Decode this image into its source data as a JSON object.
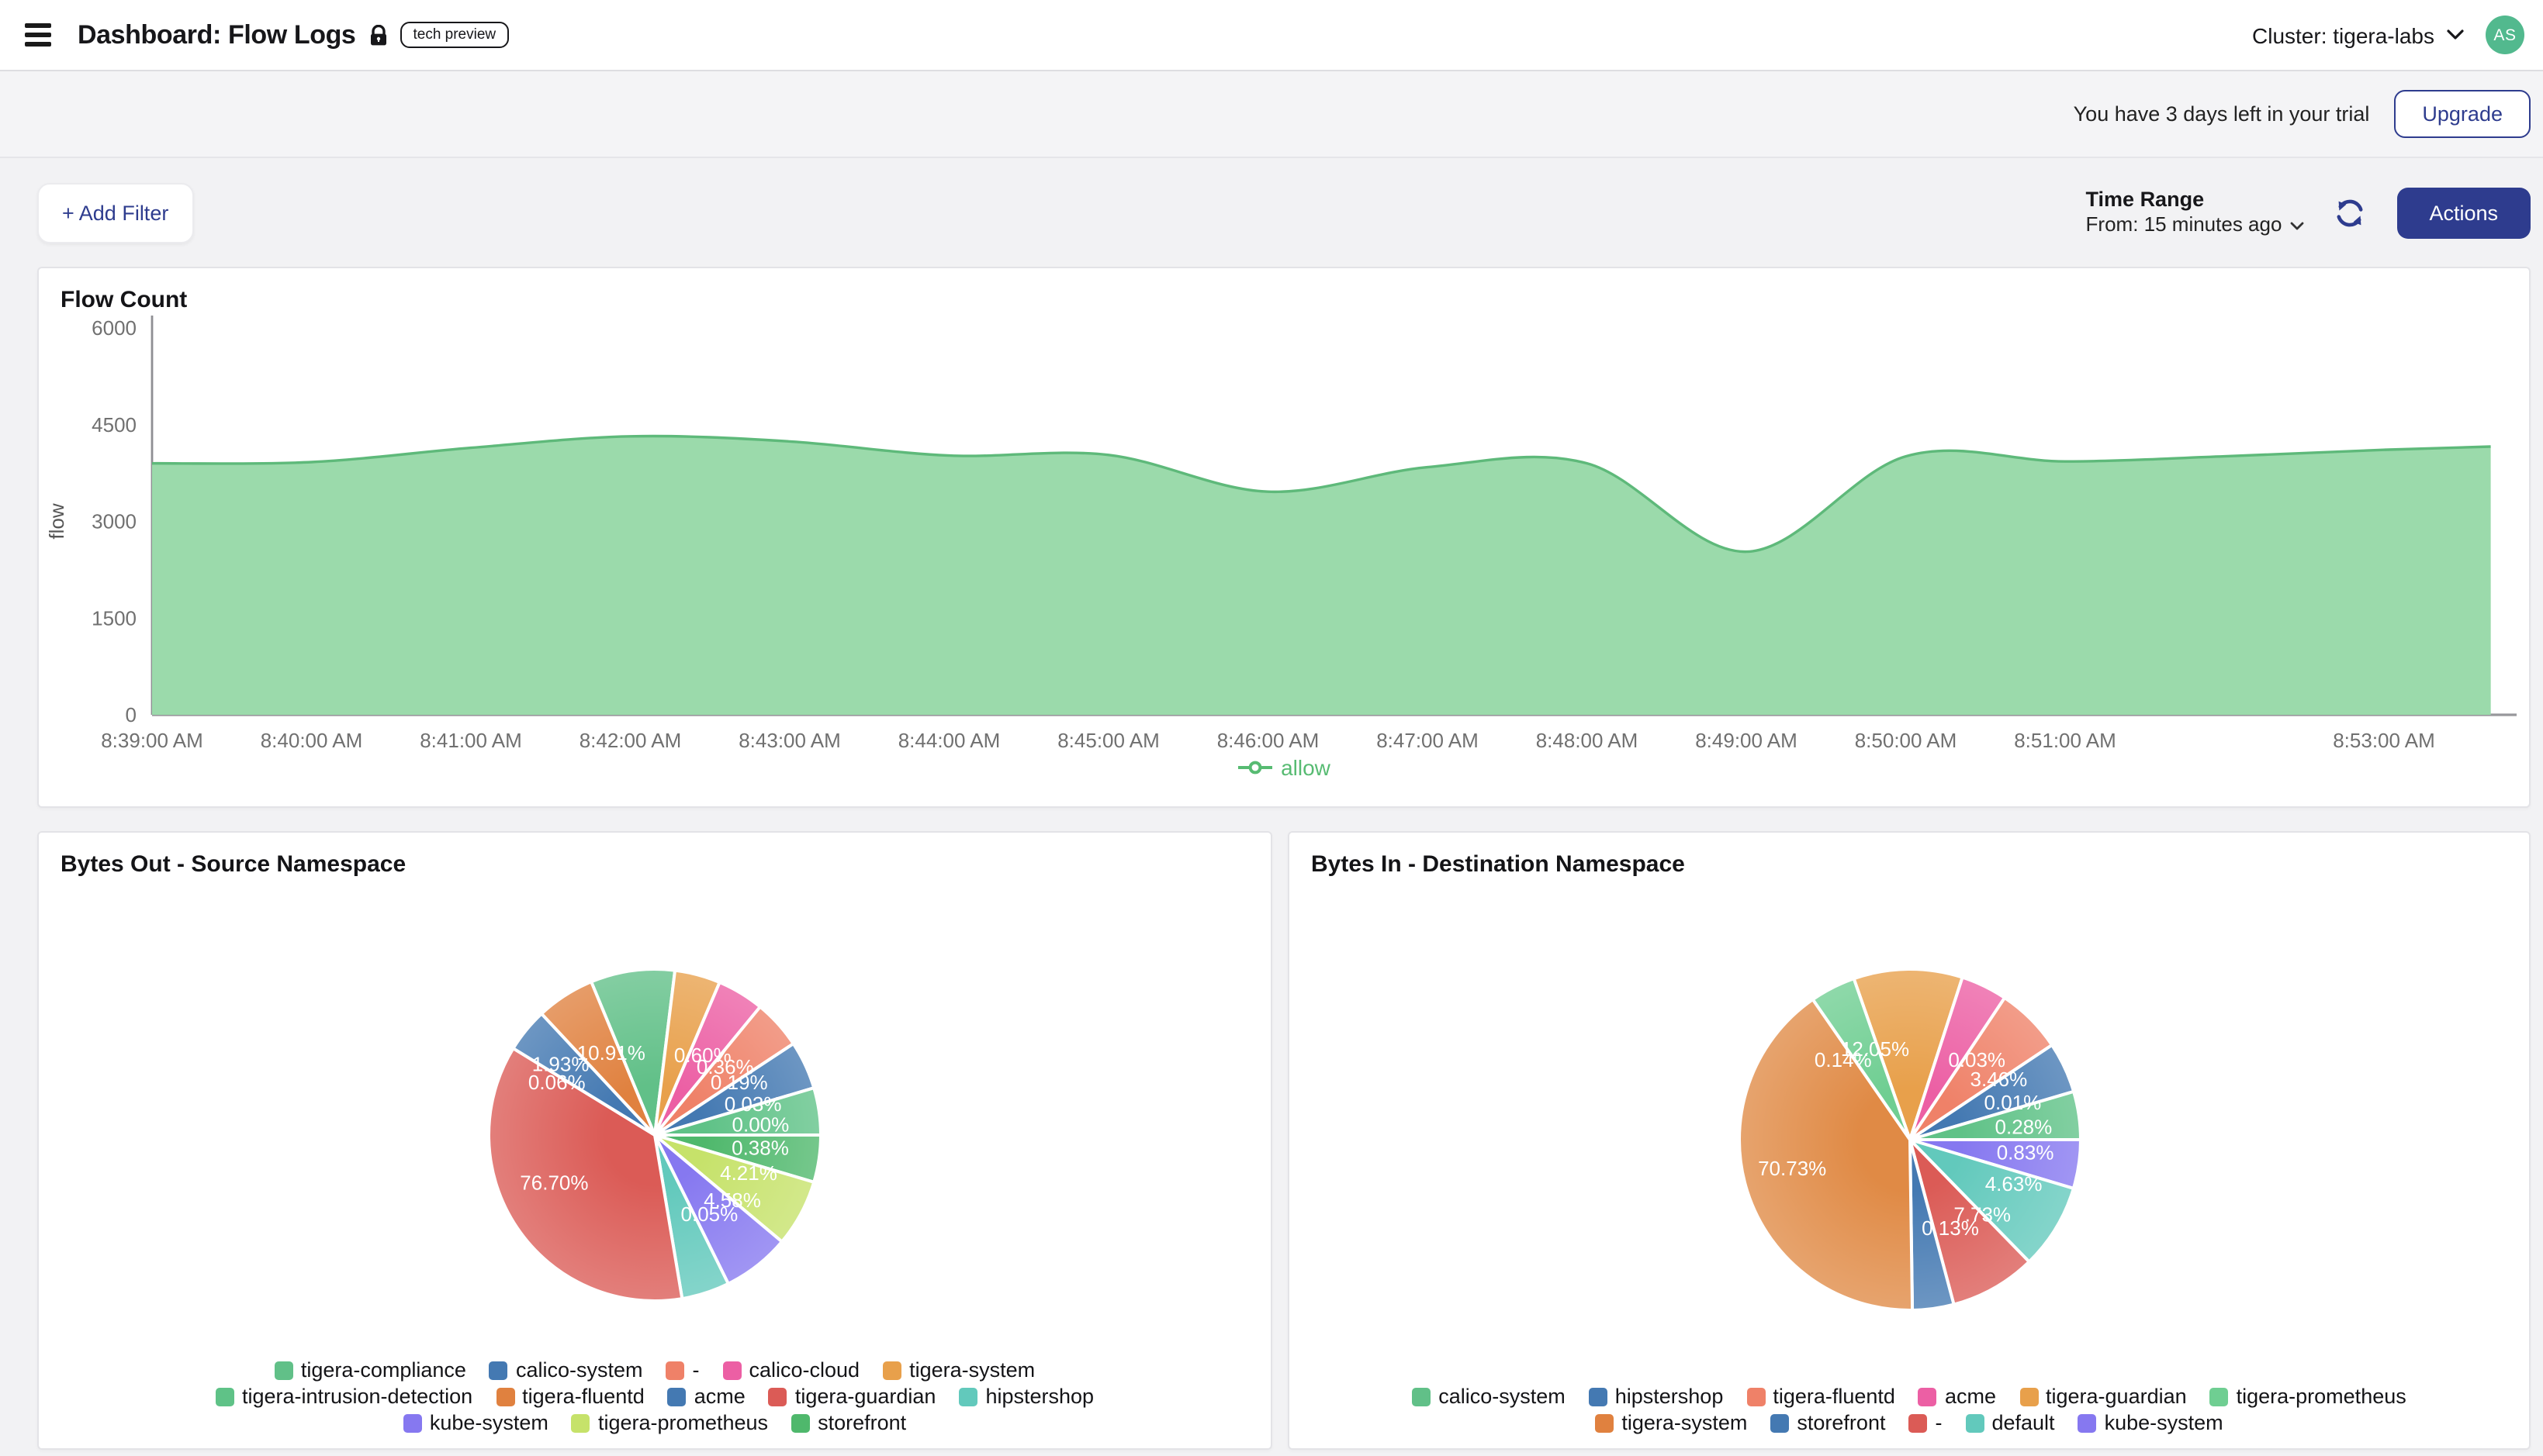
{
  "header": {
    "title": "Dashboard: Flow Logs",
    "badge": "tech preview",
    "cluster_label": "Cluster: tigera-labs",
    "avatar_initials": "AS"
  },
  "trial_banner": {
    "message": "You have 3 days left in your trial",
    "upgrade_label": "Upgrade"
  },
  "toolbar": {
    "add_filter_label": "+ Add Filter",
    "time_range_title": "Time Range",
    "time_range_value": "From: 15 minutes ago",
    "actions_label": "Actions"
  },
  "colors": {
    "accent_navy": "#2e3c8e",
    "area_fill": "#9bdaab",
    "area_stroke": "#5eb97a",
    "allow_green": "#57bb72",
    "avatar_green": "#52b98e",
    "axis_text": "#707070"
  },
  "chart_data": [
    {
      "type": "area",
      "title": "Flow Count",
      "xlabel": "",
      "ylabel": "flow",
      "ylim": [
        0,
        6000
      ],
      "yticks": [
        0,
        1500,
        3000,
        4500,
        6000
      ],
      "grid": false,
      "legend_position": "bottom",
      "xticks": [
        {
          "minute": 0,
          "label": "8:39:00 AM"
        },
        {
          "minute": 1,
          "label": "8:40:00 AM"
        },
        {
          "minute": 2,
          "label": "8:41:00 AM"
        },
        {
          "minute": 3,
          "label": "8:42:00 AM"
        },
        {
          "minute": 4,
          "label": "8:43:00 AM"
        },
        {
          "minute": 5,
          "label": "8:44:00 AM"
        },
        {
          "minute": 6,
          "label": "8:45:00 AM"
        },
        {
          "minute": 7,
          "label": "8:46:00 AM"
        },
        {
          "minute": 8,
          "label": "8:47:00 AM"
        },
        {
          "minute": 9,
          "label": "8:48:00 AM"
        },
        {
          "minute": 10,
          "label": "8:49:00 AM"
        },
        {
          "minute": 11,
          "label": "8:50:00 AM"
        },
        {
          "minute": 12,
          "label": "8:51:00 AM"
        },
        {
          "minute": 14,
          "label": "8:53:00 AM"
        }
      ],
      "series": [
        {
          "name": "allow",
          "x_minutes": [
            0,
            1,
            2,
            3,
            4,
            5,
            6,
            7,
            8,
            9,
            10,
            11,
            12,
            13,
            14,
            14.67
          ],
          "values": [
            3900,
            3920,
            4140,
            4320,
            4240,
            4020,
            4030,
            3460,
            3840,
            3900,
            2530,
            4010,
            3930,
            4010,
            4110,
            4160
          ],
          "fill": "#9bdaab",
          "stroke": "#5eb97a"
        }
      ]
    },
    {
      "type": "pie",
      "title": "Bytes Out - Source Namespace",
      "label_color": "#ffffff",
      "radius": 107,
      "slices": [
        {
          "name": "tigera-compliance",
          "value_pct": 10.91,
          "label": "10.91%",
          "color": "#61c088",
          "start_deg": 337.5,
          "end_deg": 367.0,
          "label_deg": 332.0,
          "label_r": 0.56
        },
        {
          "name": "tigera-system",
          "value_pct": 0.6,
          "label": "0.60%",
          "color": "#e8a04b",
          "start_deg": 7.0,
          "end_deg": 23.0,
          "label_deg": 31.0,
          "label_r": 0.56
        },
        {
          "name": "calico-cloud",
          "value_pct": 0.36,
          "label": "0.36%",
          "color": "#ec5fa4",
          "start_deg": 23.0,
          "end_deg": 39.4,
          "label_deg": 46.0,
          "label_r": 0.59
        },
        {
          "name": "-",
          "value_pct": 0.19,
          "label": "0.19%",
          "color": "#ef8168",
          "start_deg": 39.4,
          "end_deg": 56.6,
          "label_deg": 58.0,
          "label_r": 0.6
        },
        {
          "name": "calico-system",
          "value_pct": 0.03,
          "label": "0.03%",
          "color": "#4479b2",
          "start_deg": 56.6,
          "end_deg": 73.5,
          "label_deg": 72.5,
          "label_r": 0.62
        },
        {
          "name": "tigera-intrusion-detection",
          "value_pct": 0.0,
          "label": "0.00%",
          "color": "#5fc287",
          "start_deg": 73.5,
          "end_deg": 90.0,
          "label_deg": 84.4,
          "label_r": 0.64
        },
        {
          "name": "storefront",
          "value_pct": 0.38,
          "label": "0.38%",
          "color": "#4fb86c",
          "start_deg": 90.0,
          "end_deg": 106.5,
          "label_deg": 97.0,
          "label_r": 0.64
        },
        {
          "name": "tigera-prometheus",
          "value_pct": 4.21,
          "label": "4.21%",
          "color": "#c6e26a",
          "start_deg": 106.5,
          "end_deg": 130.0,
          "label_deg": 112.0,
          "label_r": 0.61
        },
        {
          "name": "kube-system",
          "value_pct": 4.58,
          "label": "4.58%",
          "color": "#8678f0",
          "start_deg": 130.0,
          "end_deg": 153.7,
          "label_deg": 130.0,
          "label_r": 0.61
        },
        {
          "name": "hipstershop",
          "value_pct": 0.05,
          "label": "0.05%",
          "color": "#62c9bc",
          "start_deg": 153.7,
          "end_deg": 170.5,
          "label_deg": 145.5,
          "label_r": 0.58
        },
        {
          "name": "tigera-guardian",
          "value_pct": 76.7,
          "label": "76.70%",
          "color": "#db5b56",
          "start_deg": 170.5,
          "end_deg": 301.5,
          "label_deg": 244.6,
          "label_r": 0.67
        },
        {
          "name": "acme",
          "value_pct": 0.06,
          "label": "0.06%",
          "color": "#4479b2",
          "start_deg": 301.5,
          "end_deg": 317.0,
          "label_deg": 298.4,
          "label_r": 0.67
        },
        {
          "name": "tigera-fluentd",
          "value_pct": 1.93,
          "label": "1.93%",
          "color": "#e0813f",
          "start_deg": 317.0,
          "end_deg": 337.5,
          "label_deg": 307.0,
          "label_r": 0.71
        }
      ],
      "legend_rows": [
        [
          {
            "name": "tigera-compliance",
            "color": "#61c088"
          },
          {
            "name": "calico-system",
            "color": "#4479b2"
          },
          {
            "name": "-",
            "color": "#ef8168"
          },
          {
            "name": "calico-cloud",
            "color": "#ec5fa4"
          },
          {
            "name": "tigera-system",
            "color": "#e8a04b"
          }
        ],
        [
          {
            "name": "tigera-intrusion-detection",
            "color": "#5fc287"
          },
          {
            "name": "tigera-fluentd",
            "color": "#e0813f"
          },
          {
            "name": "acme",
            "color": "#4479b2"
          },
          {
            "name": "tigera-guardian",
            "color": "#db5b56"
          },
          {
            "name": "hipstershop",
            "color": "#62c9bc"
          }
        ],
        [
          {
            "name": "kube-system",
            "color": "#8678f0"
          },
          {
            "name": "tigera-prometheus",
            "color": "#c6e26a"
          },
          {
            "name": "storefront",
            "color": "#4fb86c"
          }
        ]
      ]
    },
    {
      "type": "pie",
      "title": "Bytes In - Destination Namespace",
      "label_color": "#ffffff",
      "radius": 110,
      "slices": [
        {
          "name": "tigera-guardian",
          "value_pct": 12.05,
          "label": "12.05%",
          "color": "#e8a04b",
          "start_deg": 340.8,
          "end_deg": 377.9,
          "label_deg": 339.0,
          "label_r": 0.57
        },
        {
          "name": "acme",
          "value_pct": 0.03,
          "label": "0.03%",
          "color": "#ec5fa4",
          "start_deg": 17.9,
          "end_deg": 33.7,
          "label_deg": 40.0,
          "label_r": 0.61
        },
        {
          "name": "tigera-fluentd",
          "value_pct": 3.46,
          "label": "3.46%",
          "color": "#ef8168",
          "start_deg": 33.7,
          "end_deg": 56.3,
          "label_deg": 55.7,
          "label_r": 0.63
        },
        {
          "name": "hipstershop",
          "value_pct": 0.01,
          "label": "0.01%",
          "color": "#4479b2",
          "start_deg": 56.3,
          "end_deg": 73.6,
          "label_deg": 70.0,
          "label_r": 0.64
        },
        {
          "name": "calico-system",
          "value_pct": 0.28,
          "label": "0.28%",
          "color": "#5fc287",
          "start_deg": 73.6,
          "end_deg": 90.0,
          "label_deg": 83.5,
          "label_r": 0.67
        },
        {
          "name": "kube-system",
          "value_pct": 0.83,
          "label": "0.83%",
          "color": "#8678f0",
          "start_deg": 90.0,
          "end_deg": 106.6,
          "label_deg": 96.4,
          "label_r": 0.68
        },
        {
          "name": "default",
          "value_pct": 4.63,
          "label": "4.63%",
          "color": "#62c9bc",
          "start_deg": 106.6,
          "end_deg": 135.7,
          "label_deg": 113.0,
          "label_r": 0.66
        },
        {
          "name": "-",
          "value_pct": 7.73,
          "label": "7.73%",
          "color": "#db5b56",
          "start_deg": 135.7,
          "end_deg": 165.1,
          "label_deg": 136.0,
          "label_r": 0.61
        },
        {
          "name": "storefront",
          "value_pct": 0.13,
          "label": "0.13%",
          "color": "#4479b2",
          "start_deg": 165.1,
          "end_deg": 179.2,
          "label_deg": 155.5,
          "label_r": 0.57
        },
        {
          "name": "tigera-system",
          "value_pct": 70.73,
          "label": "70.73%",
          "color": "#e08a45",
          "start_deg": 179.2,
          "end_deg": 325.3,
          "label_deg": 256.4,
          "label_r": 0.71
        },
        {
          "name": "tigera-prometheus",
          "value_pct": 0.14,
          "label": "0.14%",
          "color": "#6fce92",
          "start_deg": 325.3,
          "end_deg": 340.8,
          "label_deg": 320.0,
          "label_r": 0.61
        }
      ],
      "legend_rows": [
        [
          {
            "name": "calico-system",
            "color": "#61c088"
          },
          {
            "name": "hipstershop",
            "color": "#4479b2"
          },
          {
            "name": "tigera-fluentd",
            "color": "#ef8168"
          },
          {
            "name": "acme",
            "color": "#ec5fa4"
          },
          {
            "name": "tigera-guardian",
            "color": "#e8a04b"
          },
          {
            "name": "tigera-prometheus",
            "color": "#6fce92"
          }
        ],
        [
          {
            "name": "tigera-system",
            "color": "#e0813f"
          },
          {
            "name": "storefront",
            "color": "#4479b2"
          },
          {
            "name": "-",
            "color": "#db5b56"
          },
          {
            "name": "default",
            "color": "#62c9bc"
          },
          {
            "name": "kube-system",
            "color": "#8678f0"
          }
        ]
      ]
    }
  ]
}
